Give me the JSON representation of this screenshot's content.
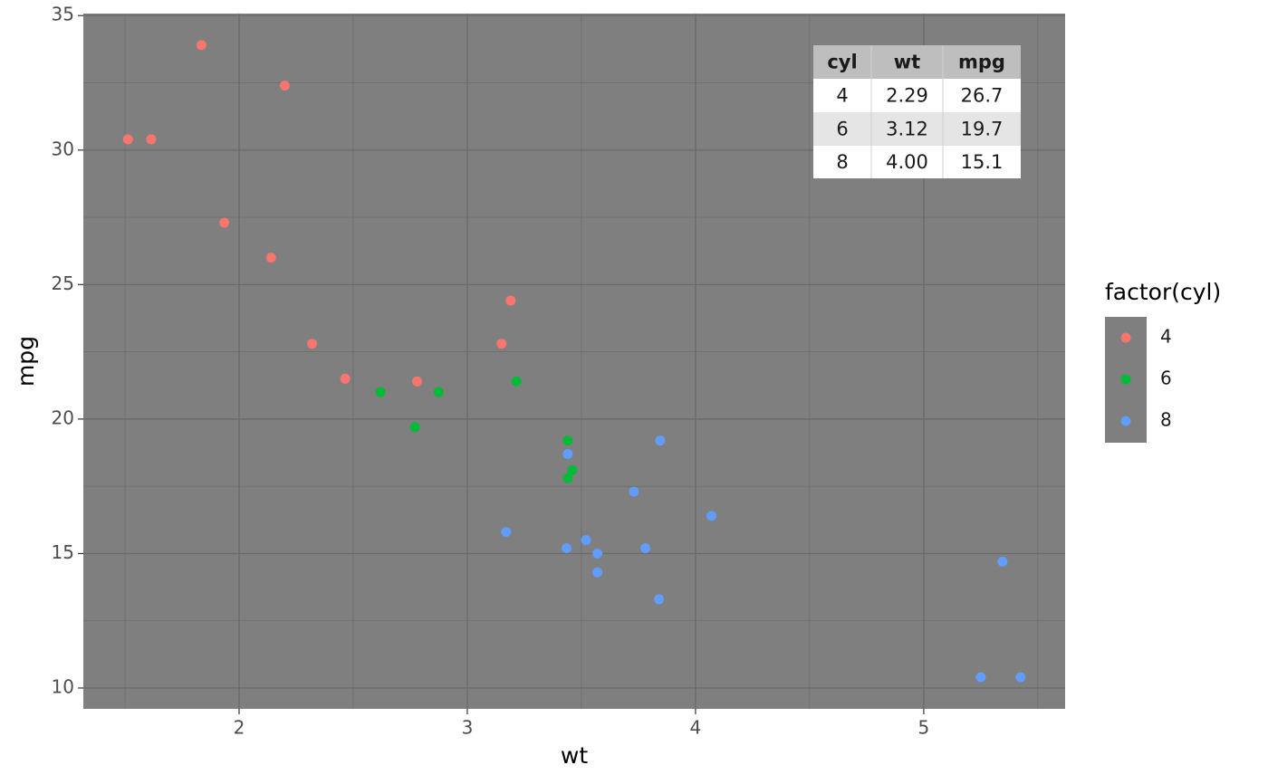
{
  "chart_data": {
    "type": "scatter",
    "x_label": "wt",
    "y_label": "mpg",
    "legend_title": "factor(cyl)",
    "legend_position": "right",
    "xlim": [
      1.3175,
      5.6195
    ],
    "ylim": [
      9.225,
      35.075
    ],
    "xticks": [
      2,
      3,
      4,
      5
    ],
    "yticks": [
      10,
      15,
      20,
      25,
      30,
      35
    ],
    "xminor": [
      1.5,
      2.5,
      3.5,
      4.5,
      5.5
    ],
    "yminor": [
      12.5,
      17.5,
      22.5,
      27.5,
      32.5
    ],
    "grid": true,
    "series": [
      {
        "name": "4",
        "color": "#f8766d",
        "x": [
          2.32,
          3.19,
          3.15,
          2.2,
          1.615,
          1.835,
          2.465,
          1.935,
          2.14,
          1.513,
          2.78
        ],
        "values": [
          22.8,
          24.4,
          22.8,
          32.4,
          30.4,
          33.9,
          21.5,
          27.3,
          26.0,
          30.4,
          21.4
        ]
      },
      {
        "name": "6",
        "color": "#00ba38",
        "x": [
          2.62,
          2.875,
          3.215,
          3.46,
          3.44,
          3.44,
          2.77
        ],
        "values": [
          21.0,
          21.0,
          21.4,
          18.1,
          19.2,
          17.8,
          19.7
        ]
      },
      {
        "name": "8",
        "color": "#619cff",
        "x": [
          3.44,
          3.57,
          4.07,
          3.73,
          3.78,
          5.25,
          5.424,
          5.345,
          3.52,
          3.435,
          3.84,
          3.845,
          3.17,
          3.57
        ],
        "values": [
          18.7,
          14.3,
          16.4,
          17.3,
          15.2,
          10.4,
          10.4,
          14.7,
          15.5,
          15.2,
          13.3,
          19.2,
          15.8,
          15.0
        ]
      }
    ],
    "table": {
      "columns": [
        "cyl",
        "wt",
        "mpg"
      ],
      "rows": [
        [
          "4",
          "2.29",
          "26.7"
        ],
        [
          "6",
          "3.12",
          "19.7"
        ],
        [
          "8",
          "4.00",
          "15.1"
        ]
      ]
    }
  }
}
